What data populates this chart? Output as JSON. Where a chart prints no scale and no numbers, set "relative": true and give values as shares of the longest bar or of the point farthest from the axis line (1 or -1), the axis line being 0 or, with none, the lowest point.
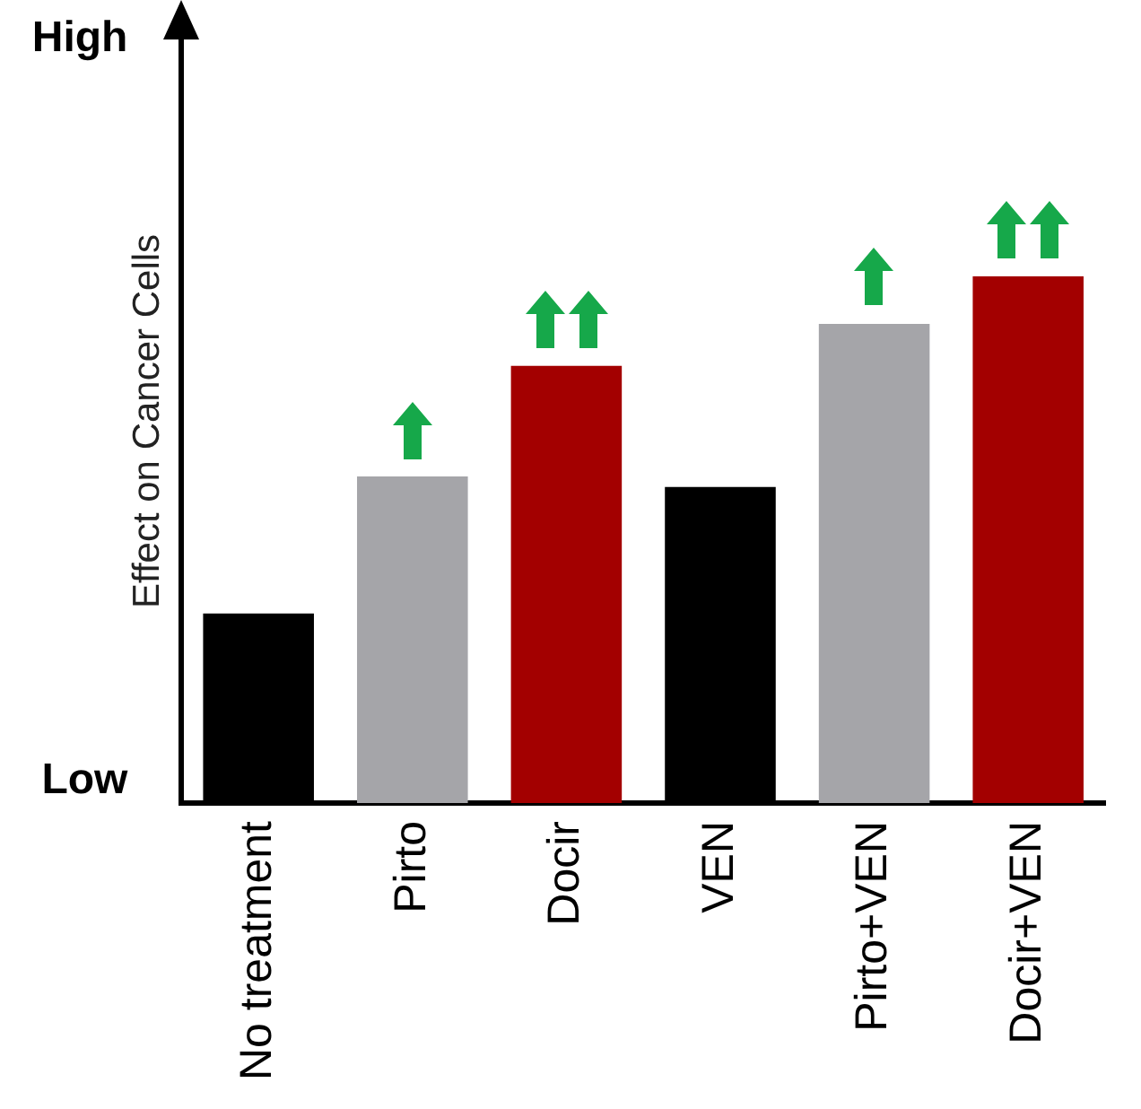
{
  "chart_data": {
    "type": "bar",
    "ylabel": "Effect on Cancer Cells",
    "categories": [
      "No treatment",
      "Pirto",
      "Docir",
      "VEN",
      "Pirto+VEN",
      "Docir+VEN"
    ],
    "values": [
      0.36,
      0.62,
      0.83,
      0.6,
      0.91,
      1
    ],
    "relative": true,
    "annotations": [
      "High",
      "Low"
    ],
    "colors": [
      "#000000",
      "#a5a5a9",
      "#a30000",
      "#000000",
      "#a5a5a9",
      "#a30000"
    ],
    "grid": false,
    "legend": false
  }
}
